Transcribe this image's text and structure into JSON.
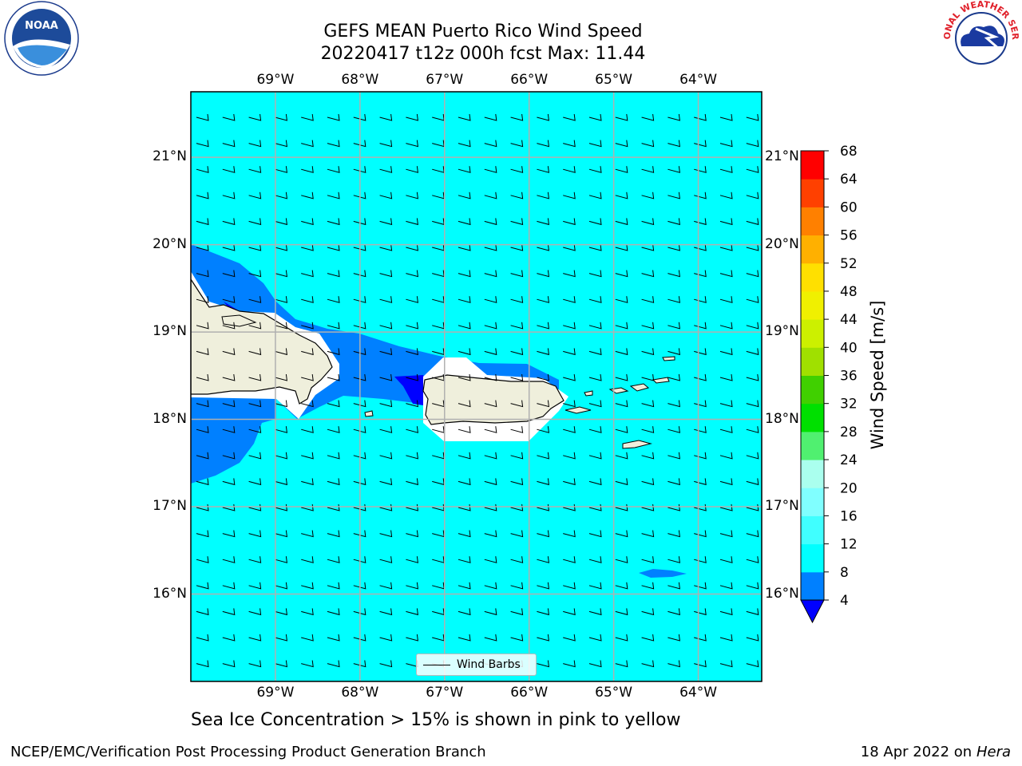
{
  "header": {
    "title_line1": "GEFS MEAN Puerto Rico Wind Speed",
    "title_line2": "20220417 t12z 000h fcst   Max: 11.44"
  },
  "logos": {
    "noaa_text": "NOAA",
    "nws_text": "NATIONAL WEATHER SERVICE"
  },
  "chart_data": {
    "type": "heatmap",
    "title": "GEFS MEAN Puerto Rico Wind Speed",
    "subtitle": "20220417 t12z 000h fcst   Max: 11.44",
    "max_value": 11.44,
    "x_ticks": [
      "69°W",
      "68°W",
      "67°W",
      "66°W",
      "65°W",
      "64°W"
    ],
    "x_values": [
      -69,
      -68,
      -67,
      -66,
      -65,
      -64
    ],
    "xlim": [
      -70,
      -63.25
    ],
    "y_ticks": [
      "21°N",
      "20°N",
      "19°N",
      "18°N",
      "17°N",
      "16°N"
    ],
    "y_values": [
      21,
      20,
      19,
      18,
      17,
      16
    ],
    "ylim": [
      15.0,
      21.75
    ],
    "grid": true,
    "colorbar": {
      "label": "Wind Speed [m/s]",
      "levels": [
        4,
        8,
        12,
        16,
        20,
        24,
        28,
        32,
        36,
        40,
        44,
        48,
        52,
        56,
        60,
        64,
        68
      ],
      "colors": [
        "#0000ff",
        "#0080ff",
        "#00ffff",
        "#40ffff",
        "#80ffff",
        "#aaffee",
        "#50f070",
        "#00e000",
        "#40d000",
        "#a0e000",
        "#ccf000",
        "#f0f000",
        "#ffe000",
        "#ffb000",
        "#ff8000",
        "#ff4000",
        "#ff0000"
      ],
      "extend_min_color": "#0000ff"
    },
    "background_level_color": "#00ffff",
    "land_color": "#efefdc",
    "legend": {
      "entries": [
        "Wind Barbs"
      ],
      "placement": "bottom-center"
    }
  },
  "annotation": "Sea Ice Concentration > 15% is shown in pink to yellow",
  "footer": {
    "left": "NCEP/EMC/Verification Post Processing Product Generation Branch",
    "right_prefix": "18 Apr 2022 on",
    "right_machine": "Hera"
  }
}
